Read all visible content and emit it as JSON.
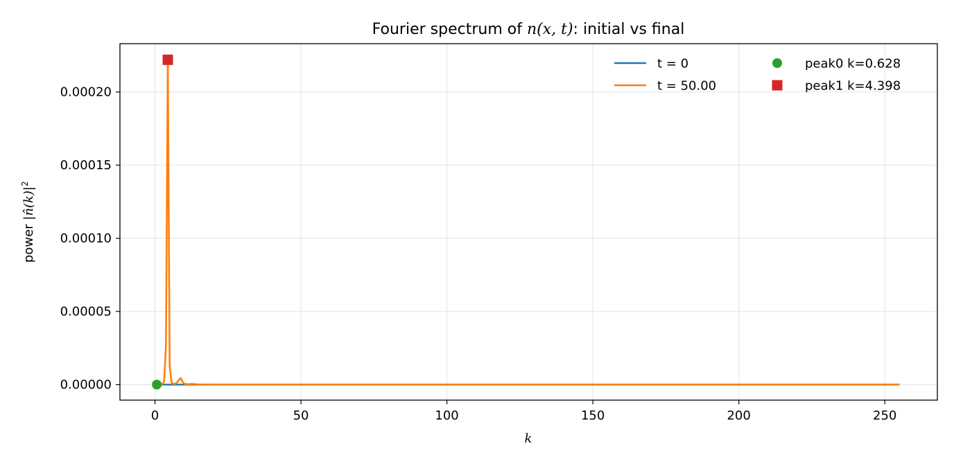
{
  "chart_data": {
    "type": "line",
    "title": {
      "prefix": "Fourier spectrum of ",
      "math": "n(x, t)",
      "suffix": ": initial vs final"
    },
    "xlabel": "k",
    "ylabel": {
      "prefix": "power |",
      "math": "n̂(k)",
      "suffix": "|",
      "sup": "2"
    },
    "xlim": [
      -12,
      268
    ],
    "ylim": [
      -1.06e-05,
      0.000233
    ],
    "x_ticks": [
      0,
      50,
      100,
      150,
      200,
      250
    ],
    "x_tick_labels": [
      "0",
      "50",
      "100",
      "150",
      "200",
      "250"
    ],
    "y_ticks": [
      0,
      5e-05,
      0.0001,
      0.00015,
      0.0002
    ],
    "y_tick_labels": [
      "0.00000",
      "0.00005",
      "0.00010",
      "0.00015",
      "0.00020"
    ],
    "grid": true,
    "legend_placement": "top-right",
    "series": [
      {
        "name": "t = 0",
        "kind": "line",
        "color": "#1f77b4",
        "x": [
          0.628,
          255.0
        ],
        "y": [
          0,
          0
        ]
      },
      {
        "name": "t = 50.00",
        "kind": "line",
        "color": "#ff7f0e",
        "x": [
          0.628,
          1.257,
          1.885,
          2.513,
          3.142,
          3.77,
          4.398,
          5.027,
          5.655,
          6.283,
          6.912,
          7.54,
          8.168,
          8.796,
          9.425,
          10.053,
          11.31,
          12.566,
          15.0,
          20.0,
          255.0
        ],
        "y": [
          0,
          0,
          0,
          5e-07,
          2e-06,
          2.7e-05,
          0.000222,
          1.3e-05,
          1.5e-06,
          5e-07,
          5e-07,
          1.5e-06,
          3e-06,
          4.5e-06,
          2e-06,
          5e-07,
          2e-07,
          5e-07,
          1e-07,
          0,
          0
        ]
      },
      {
        "name": "peak0 k=0.628",
        "kind": "marker",
        "marker": "circle",
        "color": "#2ca02c",
        "x": [
          0.628
        ],
        "y": [
          0
        ]
      },
      {
        "name": "peak1 k=4.398",
        "kind": "marker",
        "marker": "square",
        "color": "#d62728",
        "x": [
          4.398
        ],
        "y": [
          0.000222
        ]
      }
    ]
  }
}
